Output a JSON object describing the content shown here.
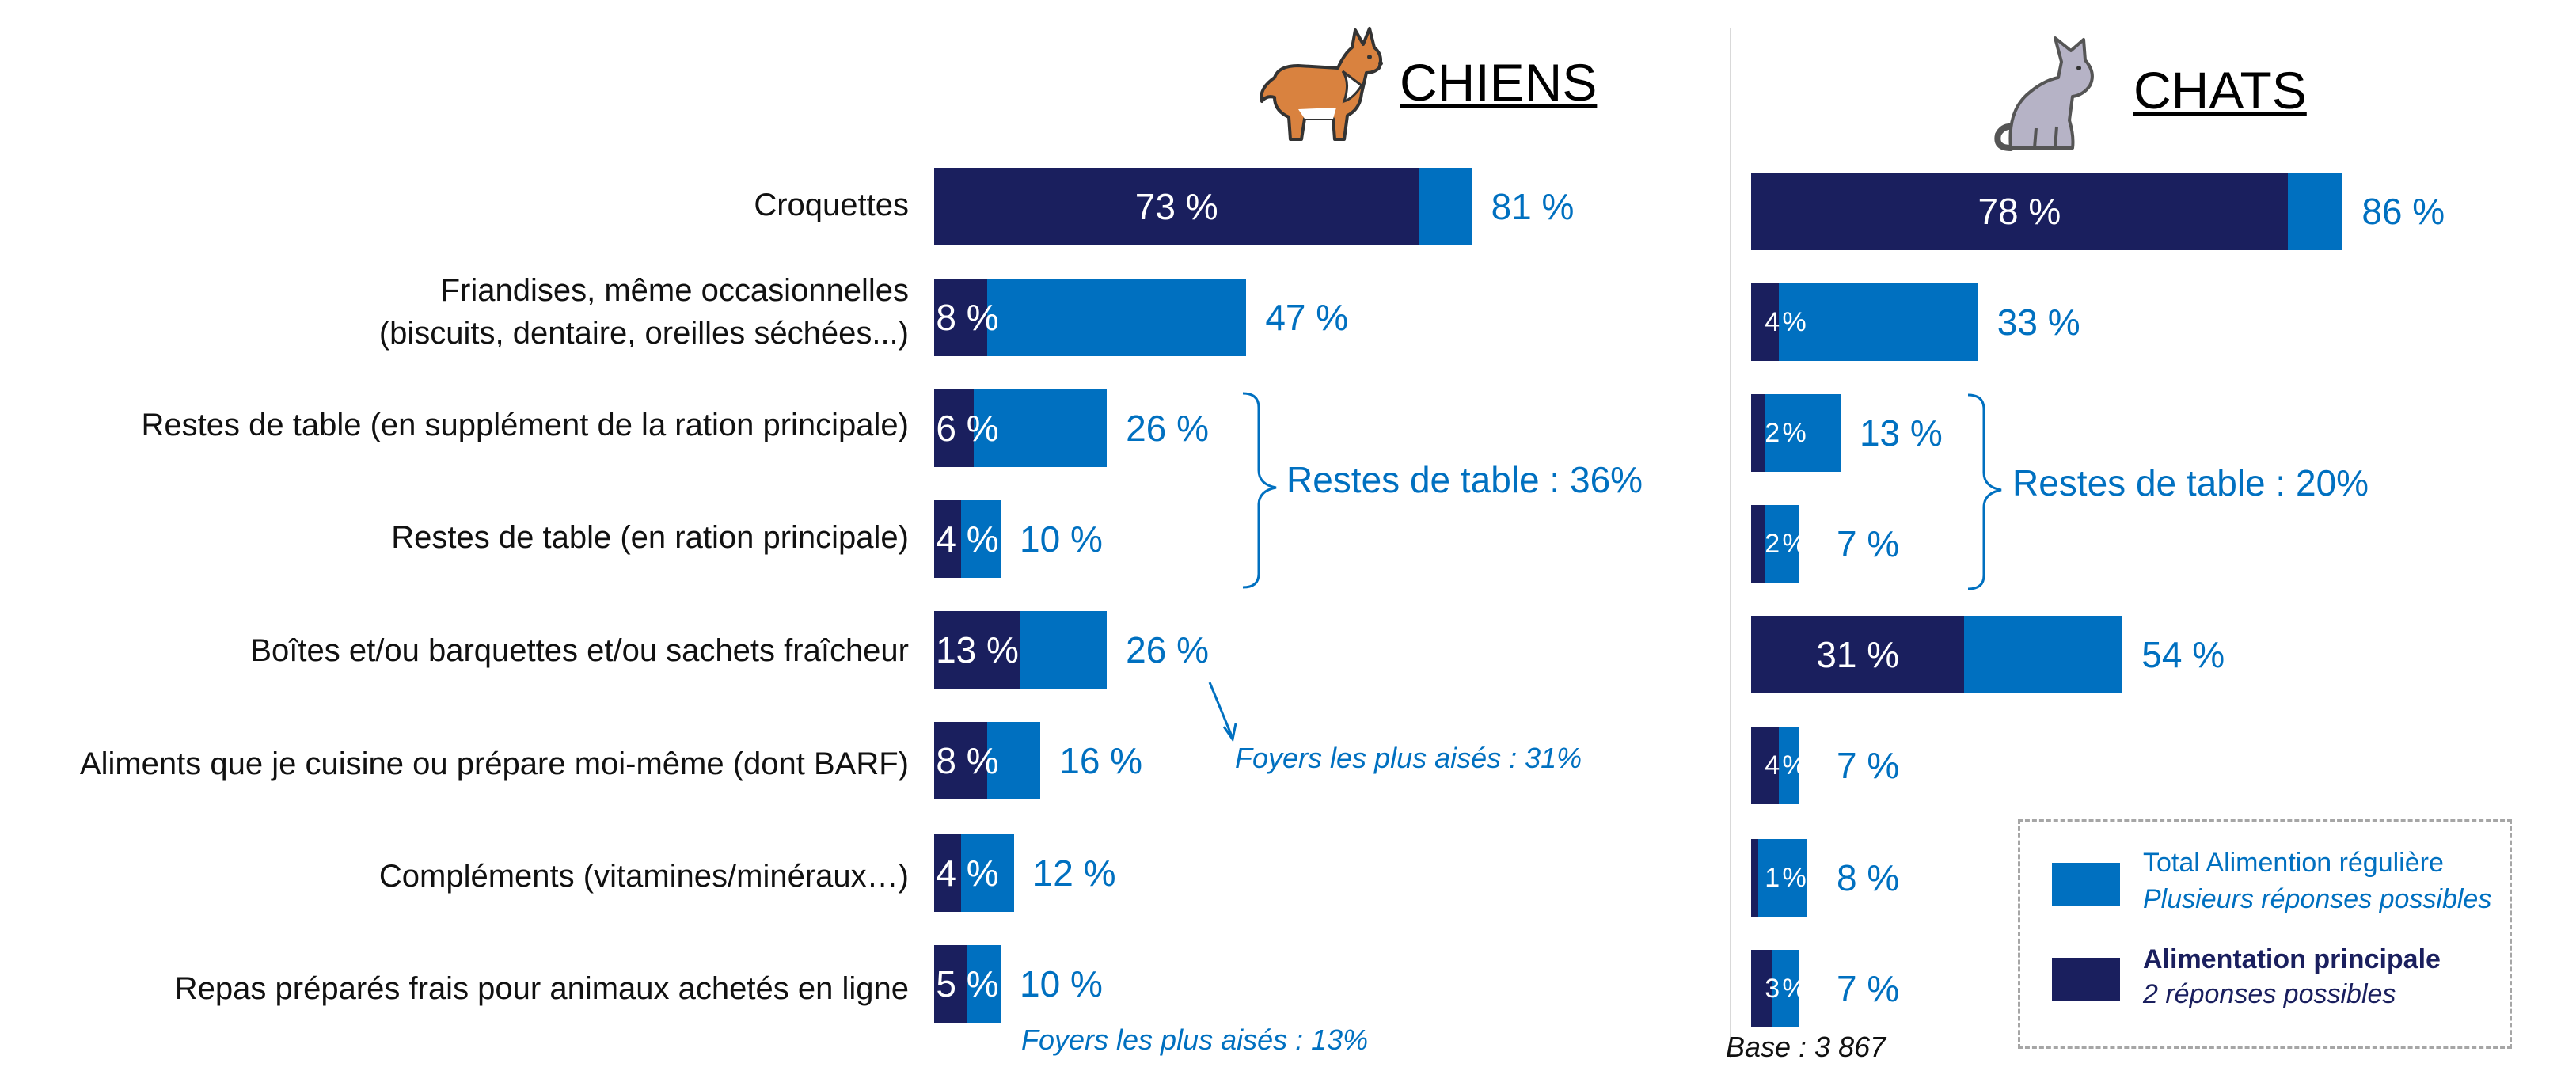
{
  "chart_data": [
    {
      "type": "bar",
      "title": "CHIENS",
      "categories": [
        "Croquettes",
        "Friandises, même occasionnelles\n(biscuits, dentaire, oreilles séchées...)",
        "Restes de table (en supplément de la ration principale)",
        "Restes de table (en ration principale)",
        "Boîtes et/ou barquettes et/ou sachets fraîcheur",
        "Aliments que je cuisine ou prépare moi-même (dont BARF)",
        "Compléments (vitamines/minéraux…)",
        "Repas préparés frais pour animaux achetés en ligne"
      ],
      "series": [
        {
          "name": "Total Alimention régulière",
          "values": [
            81,
            47,
            26,
            10,
            26,
            16,
            12,
            10
          ],
          "labels": [
            "81 %",
            "47 %",
            "26 %",
            "10 %",
            "26 %",
            "16 %",
            "12 %",
            "10 %"
          ]
        },
        {
          "name": "Alimentation principale",
          "values": [
            73,
            8,
            6,
            4,
            13,
            8,
            4,
            5
          ],
          "labels": [
            "73 %",
            "8 %",
            "6 %",
            "4 %",
            "13 %",
            "8 %",
            "4 %",
            "5 %"
          ]
        }
      ],
      "bracket": "Restes de table : 36%",
      "notes": [
        "Foyers les plus aisés : 31%",
        "Foyers les plus aisés : 13%"
      ]
    },
    {
      "type": "bar",
      "title": "CHATS",
      "series": [
        {
          "name": "Total Alimention régulière",
          "values": [
            86,
            33,
            13,
            7,
            54,
            7,
            8,
            7
          ],
          "labels": [
            "86 %",
            "33 %",
            "13 %",
            "7 %",
            "54 %",
            "7 %",
            "8 %",
            "7 %"
          ]
        },
        {
          "name": "Alimentation principale",
          "values": [
            78,
            4,
            2,
            2,
            31,
            4,
            1,
            3
          ],
          "labels": [
            "78 %",
            "4 %",
            "2 %",
            "2 %",
            "31 %",
            "4 %",
            "1 %",
            "3 %"
          ]
        }
      ],
      "bracket": "Restes de table : 20%",
      "base": "Base : 3 867"
    }
  ],
  "legend": {
    "total_title": "Total Alimention régulière",
    "total_sub": "Plusieurs réponses possibles",
    "main_title": "Alimentation principale",
    "main_sub": "2 réponses possibles"
  },
  "colors": {
    "total": "#0070C0",
    "main": "#1A1F5E",
    "text": "#111111",
    "divider": "#D9D9D9"
  },
  "icons": {
    "dogs": "corgi-dog-icon",
    "cats": "sitting-cat-icon"
  }
}
